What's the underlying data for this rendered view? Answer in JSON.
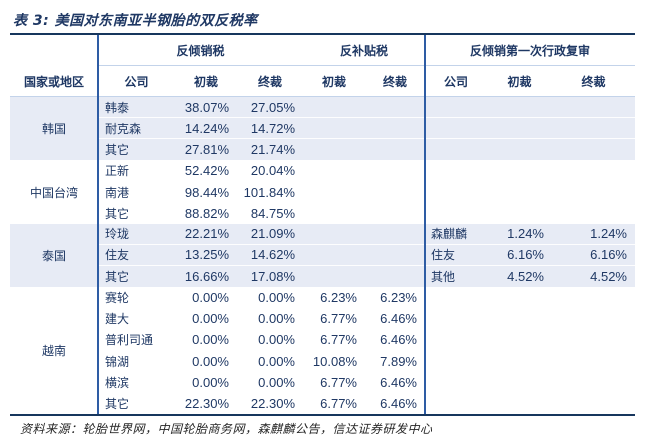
{
  "title": "表 3:  美国对东南亚半钢胎的双反税率",
  "header": {
    "groups": [
      {
        "label": "反倾销税"
      },
      {
        "label": "反补贴税"
      },
      {
        "label": "反倾销第一次行政复审"
      }
    ],
    "region": "国家或地区",
    "company": "公司",
    "prelim": "初裁",
    "final": "终裁"
  },
  "sections": [
    {
      "region": "韩国",
      "rows": [
        {
          "company": "韩泰",
          "ad_p": "38.07%",
          "ad_f": "27.05%",
          "cvd_p": "",
          "cvd_f": "",
          "rc": "",
          "rp": "",
          "rf": ""
        },
        {
          "company": "耐克森",
          "ad_p": "14.24%",
          "ad_f": "14.72%",
          "cvd_p": "",
          "cvd_f": "",
          "rc": "",
          "rp": "",
          "rf": ""
        },
        {
          "company": "其它",
          "ad_p": "27.81%",
          "ad_f": "21.74%",
          "cvd_p": "",
          "cvd_f": "",
          "rc": "",
          "rp": "",
          "rf": ""
        }
      ]
    },
    {
      "region": "中国台湾",
      "rows": [
        {
          "company": "正新",
          "ad_p": "52.42%",
          "ad_f": "20.04%",
          "cvd_p": "",
          "cvd_f": "",
          "rc": "",
          "rp": "",
          "rf": ""
        },
        {
          "company": "南港",
          "ad_p": "98.44%",
          "ad_f": "101.84%",
          "cvd_p": "",
          "cvd_f": "",
          "rc": "",
          "rp": "",
          "rf": ""
        },
        {
          "company": "其它",
          "ad_p": "88.82%",
          "ad_f": "84.75%",
          "cvd_p": "",
          "cvd_f": "",
          "rc": "",
          "rp": "",
          "rf": ""
        }
      ]
    },
    {
      "region": "泰国",
      "rows": [
        {
          "company": "玲珑",
          "ad_p": "22.21%",
          "ad_f": "21.09%",
          "cvd_p": "",
          "cvd_f": "",
          "rc": "森麒麟",
          "rp": "1.24%",
          "rf": "1.24%"
        },
        {
          "company": "住友",
          "ad_p": "13.25%",
          "ad_f": "14.62%",
          "cvd_p": "",
          "cvd_f": "",
          "rc": "住友",
          "rp": "6.16%",
          "rf": "6.16%"
        },
        {
          "company": "其它",
          "ad_p": "16.66%",
          "ad_f": "17.08%",
          "cvd_p": "",
          "cvd_f": "",
          "rc": "其他",
          "rp": "4.52%",
          "rf": "4.52%"
        }
      ]
    },
    {
      "region": "越南",
      "rows": [
        {
          "company": "赛轮",
          "ad_p": "0.00%",
          "ad_f": "0.00%",
          "cvd_p": "6.23%",
          "cvd_f": "6.23%",
          "rc": "",
          "rp": "",
          "rf": ""
        },
        {
          "company": "建大",
          "ad_p": "0.00%",
          "ad_f": "0.00%",
          "cvd_p": "6.77%",
          "cvd_f": "6.46%",
          "rc": "",
          "rp": "",
          "rf": ""
        },
        {
          "company": "普利司通",
          "ad_p": "0.00%",
          "ad_f": "0.00%",
          "cvd_p": "6.77%",
          "cvd_f": "6.46%",
          "rc": "",
          "rp": "",
          "rf": ""
        },
        {
          "company": "锦湖",
          "ad_p": "0.00%",
          "ad_f": "0.00%",
          "cvd_p": "10.08%",
          "cvd_f": "7.89%",
          "rc": "",
          "rp": "",
          "rf": ""
        },
        {
          "company": "横滨",
          "ad_p": "0.00%",
          "ad_f": "0.00%",
          "cvd_p": "6.77%",
          "cvd_f": "6.46%",
          "rc": "",
          "rp": "",
          "rf": ""
        },
        {
          "company": "其它",
          "ad_p": "22.30%",
          "ad_f": "22.30%",
          "cvd_p": "6.77%",
          "cvd_f": "6.46%",
          "rc": "",
          "rp": "",
          "rf": ""
        }
      ]
    }
  ],
  "source": "资料来源：轮胎世界网，中国轮胎商务网，森麒麟公告，信达证券研发中心",
  "colors": {
    "text_navy": "#1f3864",
    "rule_navy": "#17365d",
    "divider_blue": "#2e5ca4",
    "band_blue": "#e7ebf5",
    "thin_line_blue": "#c3d3ea",
    "source_text": "#262626"
  }
}
